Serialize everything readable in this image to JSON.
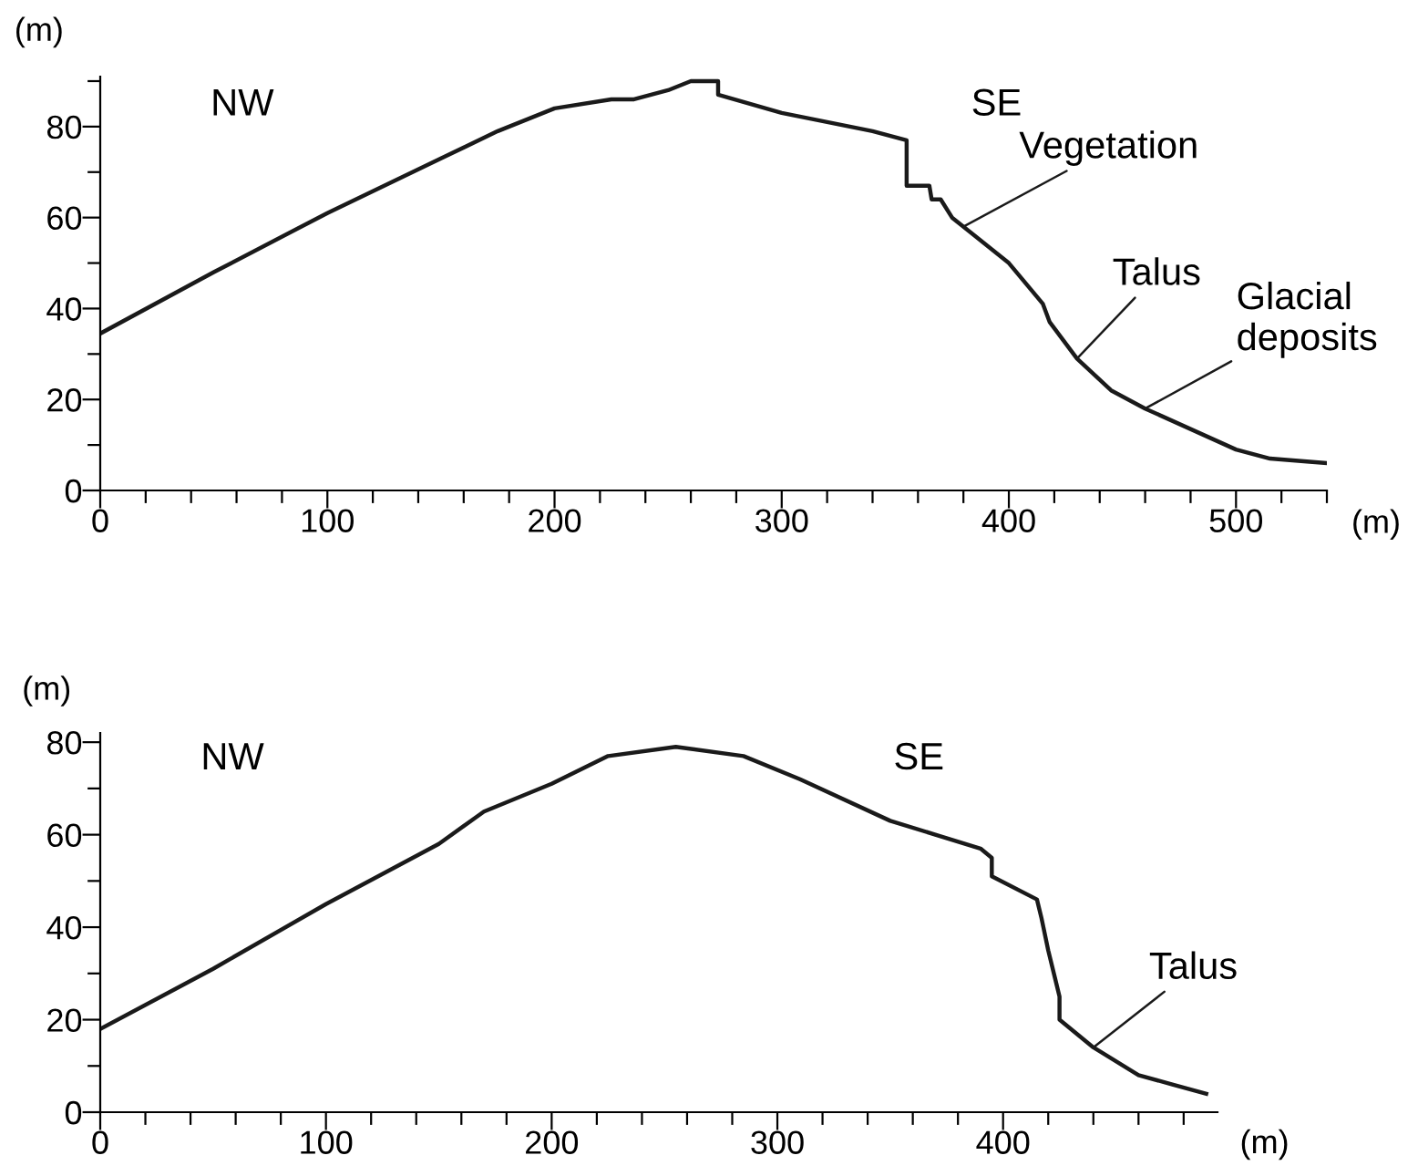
{
  "chart_data": [
    {
      "type": "line",
      "xlabel": "(m)",
      "ylabel": "(m)",
      "xlim": [
        0,
        540
      ],
      "ylim": [
        0,
        91
      ],
      "xticks": [
        0,
        {
          "value": 20,
          "label": null
        },
        {
          "value": 40,
          "label": null
        },
        {
          "value": 60,
          "label": null
        },
        {
          "value": 80,
          "label": null
        },
        100,
        {
          "value": 120,
          "label": null
        },
        {
          "value": 140,
          "label": null
        },
        {
          "value": 160,
          "label": null
        },
        {
          "value": 180,
          "label": null
        },
        200,
        {
          "value": 220,
          "label": null
        },
        {
          "value": 240,
          "label": null
        },
        {
          "value": 260,
          "label": null
        },
        {
          "value": 280,
          "label": null
        },
        300,
        {
          "value": 320,
          "label": null
        },
        {
          "value": 340,
          "label": null
        },
        {
          "value": 360,
          "label": null
        },
        {
          "value": 380,
          "label": null
        },
        400,
        {
          "value": 420,
          "label": null
        },
        {
          "value": 440,
          "label": null
        },
        {
          "value": 460,
          "label": null
        },
        {
          "value": 480,
          "label": null
        },
        500,
        {
          "value": 520,
          "label": null
        },
        {
          "value": 540,
          "label": null
        }
      ],
      "yticks": [
        0,
        {
          "value": 10,
          "label": null
        },
        20,
        {
          "value": 30,
          "label": null
        },
        40,
        {
          "value": 50,
          "label": null
        },
        60,
        {
          "value": 70,
          "label": null
        },
        80,
        {
          "value": 90,
          "label": null
        }
      ],
      "series": [
        {
          "color": "#1a1a1a",
          "x": [
            0,
            50,
            100,
            150,
            175,
            200,
            225,
            235,
            250,
            260,
            272,
            272,
            300,
            340,
            355,
            355,
            365,
            366,
            370,
            375,
            400,
            415,
            418,
            430,
            445,
            460,
            500,
            515,
            540
          ],
          "values": [
            34.5,
            48,
            61,
            73,
            79,
            84,
            86,
            86,
            88,
            90,
            90,
            87,
            83,
            79,
            77,
            67,
            67,
            64,
            64,
            60,
            50,
            41,
            37,
            29,
            22,
            18,
            9,
            7,
            6
          ]
        }
      ],
      "annotations": [
        "NW",
        "SE",
        {
          "text": "Vegetation",
          "x": 380,
          "y": 58
        },
        {
          "text": "Talus",
          "x": 430,
          "y": 29
        },
        {
          "text": "Glacial\ndeposits",
          "x": 460,
          "y": 18
        }
      ]
    },
    {
      "type": "line",
      "xlabel": "(m)",
      "ylabel": "(m)",
      "xlim": [
        0,
        495
      ],
      "ylim": [
        0,
        82
      ],
      "xticks": [
        0,
        {
          "value": 20,
          "label": null
        },
        {
          "value": 40,
          "label": null
        },
        {
          "value": 60,
          "label": null
        },
        {
          "value": 80,
          "label": null
        },
        100,
        {
          "value": 120,
          "label": null
        },
        {
          "value": 140,
          "label": null
        },
        {
          "value": 160,
          "label": null
        },
        {
          "value": 180,
          "label": null
        },
        200,
        {
          "value": 220,
          "label": null
        },
        {
          "value": 240,
          "label": null
        },
        {
          "value": 260,
          "label": null
        },
        {
          "value": 280,
          "label": null
        },
        300,
        {
          "value": 320,
          "label": null
        },
        {
          "value": 340,
          "label": null
        },
        {
          "value": 360,
          "label": null
        },
        {
          "value": 380,
          "label": null
        },
        400,
        {
          "value": 420,
          "label": null
        },
        {
          "value": 440,
          "label": null
        },
        {
          "value": 460,
          "label": null
        },
        {
          "value": 480,
          "label": null
        }
      ],
      "yticks": [
        0,
        {
          "value": 10,
          "label": null
        },
        20,
        {
          "value": 30,
          "label": null
        },
        40,
        {
          "value": 50,
          "label": null
        },
        60,
        {
          "value": 70,
          "label": null
        },
        80
      ],
      "series": [
        {
          "color": "#1a1a1a",
          "x": [
            0,
            50,
            100,
            150,
            170,
            200,
            225,
            255,
            285,
            310,
            350,
            370,
            390,
            395,
            395,
            415,
            417,
            420,
            423,
            425,
            425,
            440,
            460,
            475,
            490
          ],
          "values": [
            18,
            31,
            45,
            58,
            65,
            71,
            77,
            79,
            77,
            72,
            63,
            60,
            57,
            55,
            51,
            46,
            42,
            35,
            29,
            25,
            20,
            14,
            8,
            6,
            4
          ]
        }
      ],
      "annotations": [
        "NW",
        "SE",
        {
          "text": "Talus",
          "x": 440,
          "y": 14
        }
      ]
    }
  ]
}
